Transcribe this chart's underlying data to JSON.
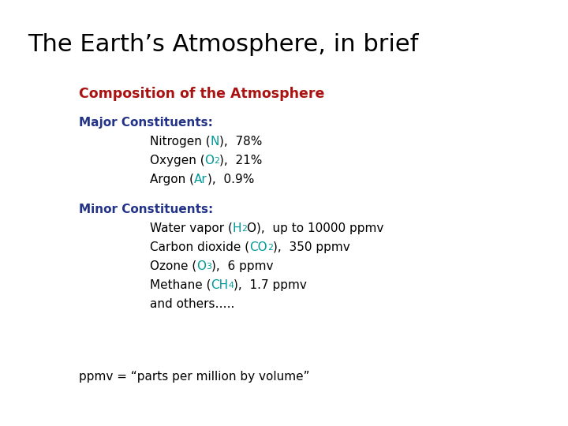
{
  "title": "The Earth’s Atmosphere, in brief",
  "title_color": "#000000",
  "title_fontsize": 22,
  "subtitle": "Composition of the Atmosphere",
  "subtitle_color": "#aa1111",
  "subtitle_fontsize": 12.5,
  "bg_color": "#ffffff",
  "section_label_color": "#223388",
  "section_label_fontsize": 11,
  "body_color": "#000000",
  "body_fontsize": 11,
  "cyan_color": "#009999",
  "footer_fontsize": 11,
  "footer_text": "ppmv = “parts per million by volume”"
}
